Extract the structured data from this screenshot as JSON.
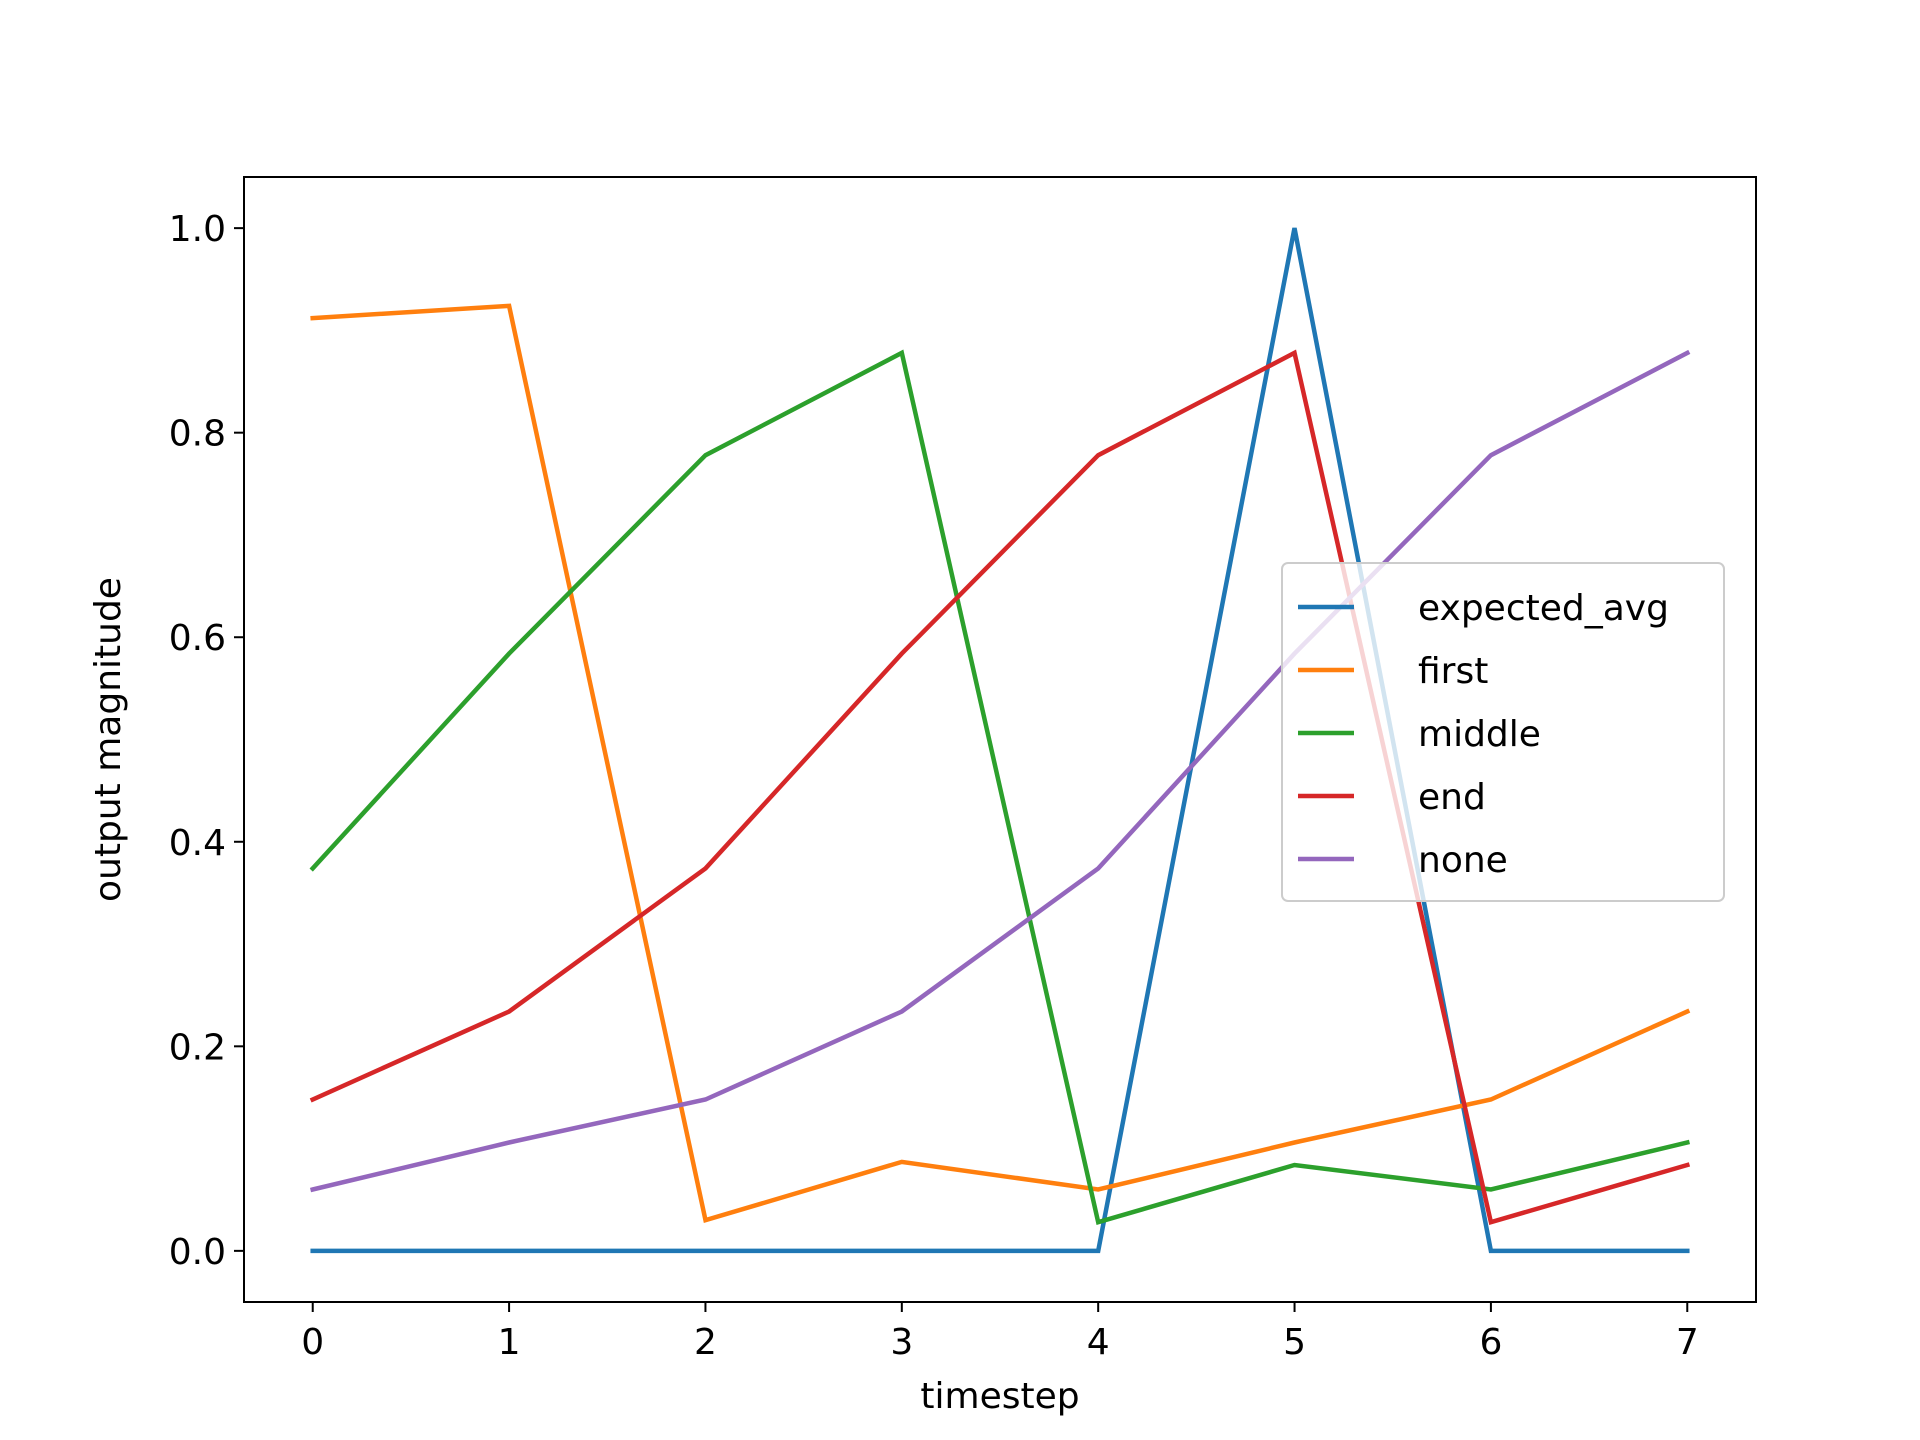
{
  "chart_data": {
    "type": "line",
    "title": "",
    "xlabel": "timestep",
    "ylabel": "output magnitude",
    "x": [
      0,
      1,
      2,
      3,
      4,
      5,
      6,
      7
    ],
    "xticks": [
      0,
      1,
      2,
      3,
      4,
      5,
      6,
      7
    ],
    "xtick_labels": [
      "0",
      "1",
      "2",
      "3",
      "4",
      "5",
      "6",
      "7"
    ],
    "yticks": [
      0.0,
      0.2,
      0.4,
      0.6,
      0.8,
      1.0
    ],
    "ytick_labels": [
      "0.0",
      "0.2",
      "0.4",
      "0.6",
      "0.8",
      "1.0"
    ],
    "xlim": [
      -0.35,
      7.35
    ],
    "ylim": [
      -0.05,
      1.05
    ],
    "grid": false,
    "legend_position": "center-right",
    "series": [
      {
        "name": "expected_avg",
        "color": "#1f77b4",
        "values": [
          0.0,
          0.0,
          0.0,
          0.0,
          0.0,
          1.0,
          0.0,
          0.0
        ]
      },
      {
        "name": "first",
        "color": "#ff7f0e",
        "values": [
          0.912,
          0.924,
          0.03,
          0.087,
          0.06,
          0.106,
          0.148,
          0.234
        ]
      },
      {
        "name": "middle",
        "color": "#2ca02c",
        "values": [
          0.374,
          0.584,
          0.778,
          0.878,
          0.028,
          0.084,
          0.06,
          0.106
        ]
      },
      {
        "name": "end",
        "color": "#d62728",
        "values": [
          0.148,
          0.234,
          0.374,
          0.584,
          0.778,
          0.878,
          0.028,
          0.084
        ]
      },
      {
        "name": "none",
        "color": "#9467bd",
        "values": [
          0.06,
          0.106,
          0.148,
          0.234,
          0.374,
          0.584,
          0.778,
          0.878
        ]
      }
    ]
  }
}
